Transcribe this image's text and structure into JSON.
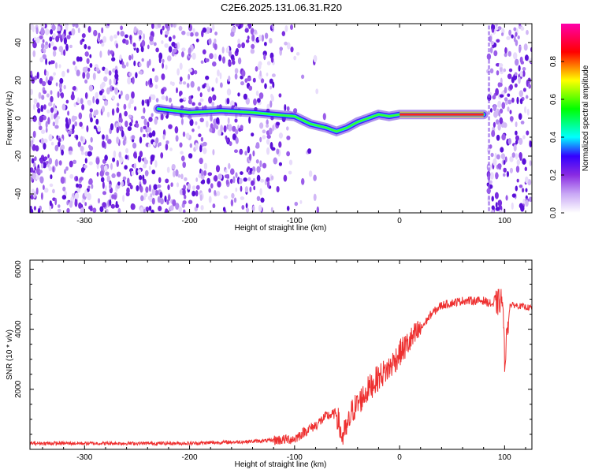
{
  "title": "C2E6.2025.131.06.31.R20",
  "chart_data": [
    {
      "type": "heatmap",
      "xlabel": "Height of straight line (km)",
      "ylabel": "Frequency (Hz)",
      "xlim": [
        -352,
        126
      ],
      "ylim": [
        -50,
        50
      ],
      "x_ticks": [
        -300,
        -200,
        -100,
        0,
        100
      ],
      "y_ticks": [
        -40,
        -20,
        0,
        20,
        40
      ],
      "colorbar": {
        "label": "Normalized spectral amplitude",
        "range": [
          0,
          1
        ],
        "ticks": [
          0.0,
          0.2,
          0.4,
          0.6,
          0.8
        ],
        "colormap": [
          "#ffffff",
          "#c9a8f5",
          "#8a2be2",
          "#3300ff",
          "#00ffff",
          "#00ff00",
          "#ffff00",
          "#ff0000",
          "#ff00aa"
        ]
      },
      "ridge_line": {
        "x": [
          -230,
          -200,
          -170,
          -140,
          -120,
          -100,
          -85,
          -70,
          -60,
          -50,
          -40,
          -30,
          -20,
          -10,
          0,
          20,
          40,
          60,
          80
        ],
        "y": [
          5,
          3,
          4,
          3,
          2,
          1,
          -3,
          -5,
          -7,
          -5,
          -2,
          0,
          2,
          1,
          2,
          2,
          2,
          2,
          2
        ]
      }
    },
    {
      "type": "line",
      "xlabel": "Height of straight line (km)",
      "ylabel": "SNR (10 * v/v)",
      "xlim": [
        -352,
        126
      ],
      "ylim": [
        0,
        6300
      ],
      "x_ticks": [
        -300,
        -200,
        -100,
        0,
        100
      ],
      "y_ticks": [
        2000,
        4000,
        6000
      ],
      "line_color": "#ee3030",
      "x": [
        -352,
        -300,
        -250,
        -200,
        -150,
        -120,
        -100,
        -90,
        -80,
        -70,
        -60,
        -55,
        -50,
        -45,
        -40,
        -30,
        -20,
        -10,
        0,
        10,
        20,
        30,
        40,
        60,
        80,
        90,
        98,
        100,
        105,
        110,
        126
      ],
      "y": [
        200,
        200,
        200,
        200,
        250,
        300,
        350,
        600,
        800,
        1100,
        1200,
        400,
        700,
        1300,
        1500,
        2000,
        2400,
        2700,
        3200,
        3600,
        4000,
        4500,
        4800,
        4950,
        4950,
        4800,
        5000,
        3000,
        4800,
        4800,
        4700
      ]
    }
  ]
}
